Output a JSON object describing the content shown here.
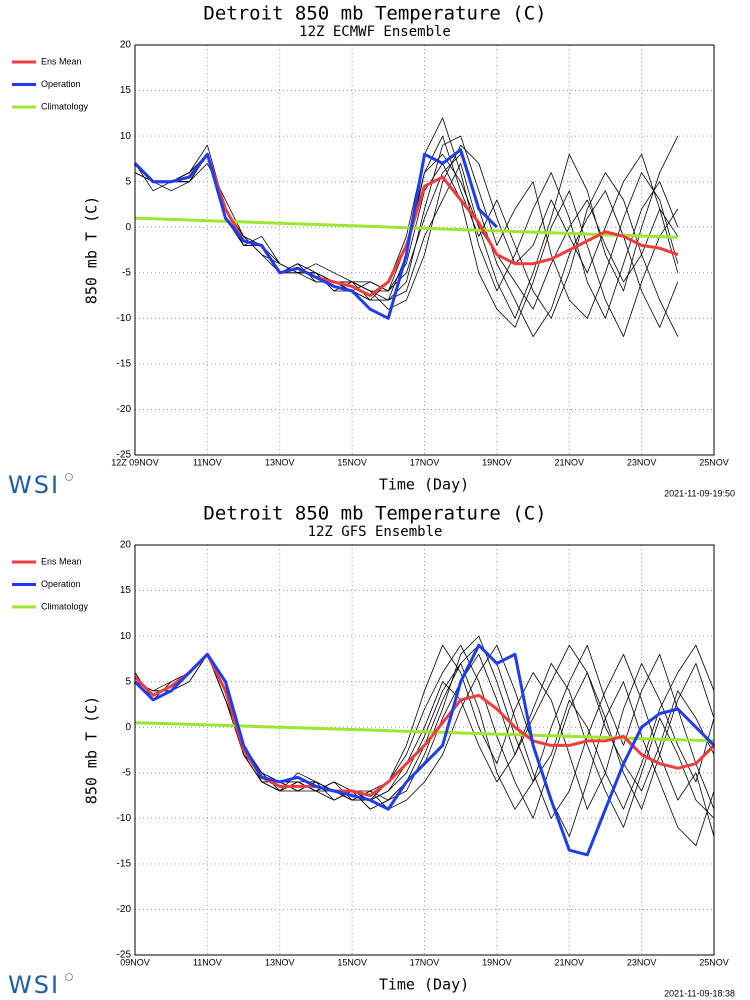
{
  "chart_data": [
    {
      "type": "line",
      "title": "Detroit 850 mb Temperature (C)",
      "subtitle": "12Z ECMWF Ensemble",
      "xlabel": "Time (Day)",
      "ylabel": "850 mb T (C)",
      "logo": "WSI",
      "timestamp": "2021-11-09-19:50",
      "grid": true,
      "xlim": [
        0,
        16
      ],
      "ylim": [
        -25,
        20
      ],
      "xticks": [
        {
          "value": 0,
          "label": "12Z 09NOV"
        },
        {
          "value": 2,
          "label": "11NOV"
        },
        {
          "value": 4,
          "label": "13NOV"
        },
        {
          "value": 6,
          "label": "15NOV"
        },
        {
          "value": 8,
          "label": "17NOV"
        },
        {
          "value": 10,
          "label": "19NOV"
        },
        {
          "value": 12,
          "label": "21NOV"
        },
        {
          "value": 14,
          "label": "23NOV"
        },
        {
          "value": 16,
          "label": "25NOV"
        }
      ],
      "yticks": [
        -25,
        -20,
        -15,
        -10,
        -5,
        0,
        5,
        10,
        15,
        20
      ],
      "x": [
        0,
        0.5,
        1,
        1.5,
        2,
        2.5,
        3,
        3.5,
        4,
        4.5,
        5,
        5.5,
        6,
        6.5,
        7,
        7.5,
        8,
        8.5,
        9,
        9.5,
        10,
        10.5,
        11,
        11.5,
        12,
        12.5,
        13,
        13.5,
        14,
        14.5,
        15
      ],
      "member_color": "#000000",
      "members": [
        {
          "values": [
            7,
            5,
            5,
            6,
            8,
            1,
            -2,
            -2,
            -5,
            -4,
            -5,
            -6,
            -6,
            -6,
            -7,
            -2,
            6,
            8,
            5,
            0,
            -3,
            -6,
            -9,
            -4,
            0,
            3,
            -2,
            -6,
            -3,
            2,
            -1
          ]
        },
        {
          "values": [
            7,
            5,
            5,
            5,
            8,
            2,
            -1,
            -3,
            -4,
            -5,
            -6,
            -6,
            -7,
            -8,
            -8,
            -6,
            2,
            9,
            10,
            4,
            -2,
            2,
            5,
            -3,
            -8,
            -10,
            -5,
            1,
            6,
            3,
            -4
          ]
        },
        {
          "values": [
            7,
            5,
            4,
            5,
            7,
            3,
            -1,
            -2,
            -5,
            -5,
            -4,
            -5,
            -6,
            -7,
            -7,
            -4,
            4,
            7,
            3,
            -5,
            -9,
            -11,
            -6,
            0,
            4,
            -2,
            -8,
            -12,
            -6,
            -1,
            2
          ]
        },
        {
          "values": [
            6,
            5,
            5,
            6,
            8,
            2,
            -2,
            -1,
            -4,
            -5,
            -5,
            -7,
            -6,
            -7,
            -9,
            -8,
            -3,
            5,
            9,
            7,
            1,
            -4,
            -2,
            3,
            -1,
            -5,
            0,
            5,
            8,
            2,
            -5
          ]
        },
        {
          "values": [
            7,
            4,
            5,
            5,
            8,
            1,
            -1,
            -2,
            -5,
            -4,
            -6,
            -6,
            -6,
            -8,
            -6,
            -1,
            8,
            12,
            6,
            -2,
            -7,
            -3,
            2,
            6,
            1,
            -6,
            -10,
            -4,
            2,
            5,
            0
          ]
        },
        {
          "values": [
            7,
            5,
            5,
            6,
            9,
            2,
            -2,
            -2,
            -4,
            -5,
            -5,
            -6,
            -7,
            -6,
            -7,
            -5,
            1,
            6,
            8,
            2,
            -4,
            -8,
            -12,
            -9,
            -3,
            1,
            4,
            -1,
            -7,
            -11,
            -6
          ]
        },
        {
          "values": [
            7,
            5,
            5,
            5,
            8,
            2,
            -1,
            -3,
            -5,
            -4,
            -5,
            -6,
            -6,
            -7,
            -8,
            -3,
            6,
            10,
            4,
            -1,
            3,
            -2,
            -7,
            -10,
            -5,
            2,
            6,
            3,
            -3,
            -8,
            -12
          ]
        },
        {
          "values": [
            6,
            5,
            5,
            6,
            8,
            1,
            -2,
            -2,
            -5,
            -5,
            -5,
            -7,
            -7,
            -8,
            -8,
            -7,
            -1,
            3,
            7,
            0,
            -6,
            -10,
            -5,
            1,
            8,
            4,
            -3,
            -7,
            0,
            6,
            10
          ]
        }
      ],
      "series": [
        {
          "name": "Ens Mean",
          "color": "#f03c3c",
          "values": [
            7,
            5,
            5,
            5.5,
            8,
            2,
            -1.5,
            -2,
            -5,
            -4.5,
            -5.5,
            -6,
            -6.5,
            -7.5,
            -6,
            -2,
            4.5,
            5.5,
            3,
            0.5,
            -3,
            -4,
            -4,
            -3.5,
            -2.5,
            -1.5,
            -0.5,
            -1,
            -2,
            -2.3,
            -3
          ]
        },
        {
          "name": "Operation",
          "color": "#1e3cf0",
          "values": [
            7,
            5,
            5,
            5.5,
            8,
            1,
            -1.5,
            -2,
            -5,
            -4.5,
            -5.5,
            -6.5,
            -7,
            -9,
            -10,
            -3,
            8,
            7,
            8.5,
            2,
            0,
            null,
            null,
            null,
            null,
            null,
            null,
            null,
            null,
            null,
            null
          ]
        },
        {
          "name": "Climatology",
          "color": "#9ce632",
          "values": [
            1.0,
            0.93,
            0.86,
            0.79,
            0.72,
            0.65,
            0.58,
            0.51,
            0.44,
            0.37,
            0.3,
            0.23,
            0.16,
            0.09,
            0.02,
            -0.05,
            -0.12,
            -0.19,
            -0.26,
            -0.33,
            -0.4,
            -0.47,
            -0.54,
            -0.61,
            -0.68,
            -0.75,
            -0.82,
            -0.89,
            -0.96,
            -1.03,
            -1.1
          ]
        }
      ]
    },
    {
      "type": "line",
      "title": "Detroit 850 mb Temperature (C)",
      "subtitle": "12Z GFS Ensemble",
      "xlabel": "Time (Day)",
      "ylabel": "850 mb T (C)",
      "logo": "WSI",
      "timestamp": "2021-11-09-18:38",
      "grid": true,
      "xlim": [
        0,
        16
      ],
      "ylim": [
        -25,
        20
      ],
      "xticks": [
        {
          "value": 0,
          "label": "09NOV"
        },
        {
          "value": 2,
          "label": "11NOV"
        },
        {
          "value": 4,
          "label": "13NOV"
        },
        {
          "value": 6,
          "label": "15NOV"
        },
        {
          "value": 8,
          "label": "17NOV"
        },
        {
          "value": 10,
          "label": "19NOV"
        },
        {
          "value": 12,
          "label": "21NOV"
        },
        {
          "value": 14,
          "label": "23NOV"
        },
        {
          "value": 16,
          "label": "25NOV"
        }
      ],
      "yticks": [
        -25,
        -20,
        -15,
        -10,
        -5,
        0,
        5,
        10,
        15,
        20
      ],
      "x": [
        0,
        0.5,
        1,
        1.5,
        2,
        2.5,
        3,
        3.5,
        4,
        4.5,
        5,
        5.5,
        6,
        6.5,
        7,
        7.5,
        8,
        8.5,
        9,
        9.5,
        10,
        10.5,
        11,
        11.5,
        12,
        12.5,
        13,
        13.5,
        14,
        14.5,
        15,
        15.5,
        16
      ],
      "member_color": "#000000",
      "members": [
        {
          "values": [
            5,
            3,
            4,
            6,
            8,
            4,
            -3,
            -6,
            -7,
            -6,
            -7,
            -7,
            -8,
            -7,
            -6,
            -3,
            2,
            6,
            9,
            5,
            -1,
            -6,
            -10,
            -4,
            2,
            6,
            1,
            -5,
            -9,
            -3,
            3,
            7,
            1
          ]
        },
        {
          "values": [
            5,
            4,
            4,
            6,
            8,
            3,
            -2,
            -5,
            -6,
            -7,
            -6,
            -8,
            -7,
            -9,
            -8,
            -6,
            -4,
            1,
            5,
            8,
            3,
            -3,
            2,
            7,
            4,
            -2,
            -7,
            -11,
            -5,
            1,
            -3,
            -8,
            -10
          ]
        },
        {
          "values": [
            6,
            3,
            5,
            6,
            8,
            4,
            -3,
            -5,
            -6,
            -6,
            -7,
            -6,
            -7,
            -8,
            -7,
            -5,
            -1,
            4,
            7,
            2,
            -5,
            -9,
            -6,
            0,
            5,
            9,
            3,
            -2,
            4,
            8,
            2,
            -4,
            -9
          ]
        },
        {
          "values": [
            5,
            3,
            4,
            5,
            8,
            5,
            -2,
            -6,
            -7,
            -5,
            -6,
            -7,
            -8,
            -7,
            -9,
            -8,
            -6,
            -3,
            2,
            6,
            9,
            4,
            -2,
            -8,
            -12,
            -6,
            1,
            5,
            -1,
            -6,
            -11,
            -13,
            -7
          ]
        },
        {
          "values": [
            5,
            4,
            5,
            6,
            8,
            3,
            -3,
            -6,
            -6,
            -7,
            -7,
            -6,
            -8,
            -8,
            -6,
            -2,
            4,
            9,
            6,
            0,
            -4,
            2,
            6,
            3,
            -3,
            -9,
            -5,
            2,
            7,
            3,
            -2,
            -6,
            1
          ]
        },
        {
          "values": [
            6,
            3,
            4,
            6,
            8,
            4,
            -2,
            -5,
            -7,
            -6,
            -6,
            -7,
            -7,
            -9,
            -8,
            -7,
            -3,
            2,
            8,
            10,
            5,
            -1,
            -6,
            -3,
            3,
            0,
            -5,
            -9,
            -4,
            2,
            6,
            9,
            4
          ]
        },
        {
          "values": [
            5,
            3,
            4,
            6,
            8,
            4,
            -3,
            -6,
            -6,
            -6,
            -7,
            -8,
            -7,
            -7,
            -8,
            -6,
            -2,
            3,
            7,
            9,
            7,
            1,
            -5,
            -10,
            -7,
            -1,
            4,
            8,
            3,
            -3,
            -8,
            -5,
            -12
          ]
        },
        {
          "values": [
            5,
            4,
            4,
            5,
            8,
            3,
            -2,
            -5,
            -7,
            -7,
            -6,
            -7,
            -8,
            -8,
            -7,
            -4,
            0,
            5,
            3,
            -2,
            -6,
            -3,
            1,
            5,
            9,
            6,
            0,
            -4,
            -7,
            -2,
            4,
            1,
            -3
          ]
        }
      ],
      "series": [
        {
          "name": "Ens Mean",
          "color": "#f03c3c",
          "values": [
            5.5,
            3.5,
            4.5,
            6,
            8,
            4,
            -2.5,
            -5.5,
            -6.5,
            -6.5,
            -6.5,
            -7,
            -7,
            -7.5,
            -6,
            -4,
            -2,
            0.5,
            3,
            3.5,
            2,
            0,
            -1.5,
            -2,
            -2,
            -1.5,
            -1.5,
            -1,
            -3,
            -4,
            -4.5,
            -4,
            -2
          ]
        },
        {
          "name": "Operation",
          "color": "#1e3cf0",
          "values": [
            5,
            3,
            4,
            6,
            8,
            5,
            -2,
            -5.5,
            -6,
            -5.5,
            -6.5,
            -7,
            -7.5,
            -8,
            -9,
            -6,
            -4,
            -2,
            5,
            9,
            7,
            8,
            -2,
            -8,
            -13.5,
            -14,
            -9,
            -4,
            0,
            1.5,
            2,
            0,
            -2
          ]
        },
        {
          "name": "Climatology",
          "color": "#9ce632",
          "values": [
            0.5,
            0.44,
            0.38,
            0.31,
            0.25,
            0.19,
            0.13,
            0.06,
            0,
            -0.06,
            -0.13,
            -0.19,
            -0.25,
            -0.31,
            -0.38,
            -0.44,
            -0.5,
            -0.56,
            -0.63,
            -0.69,
            -0.75,
            -0.81,
            -0.88,
            -0.94,
            -1,
            -1.06,
            -1.13,
            -1.19,
            -1.25,
            -1.31,
            -1.38,
            -1.44,
            -1.5
          ]
        }
      ]
    }
  ]
}
